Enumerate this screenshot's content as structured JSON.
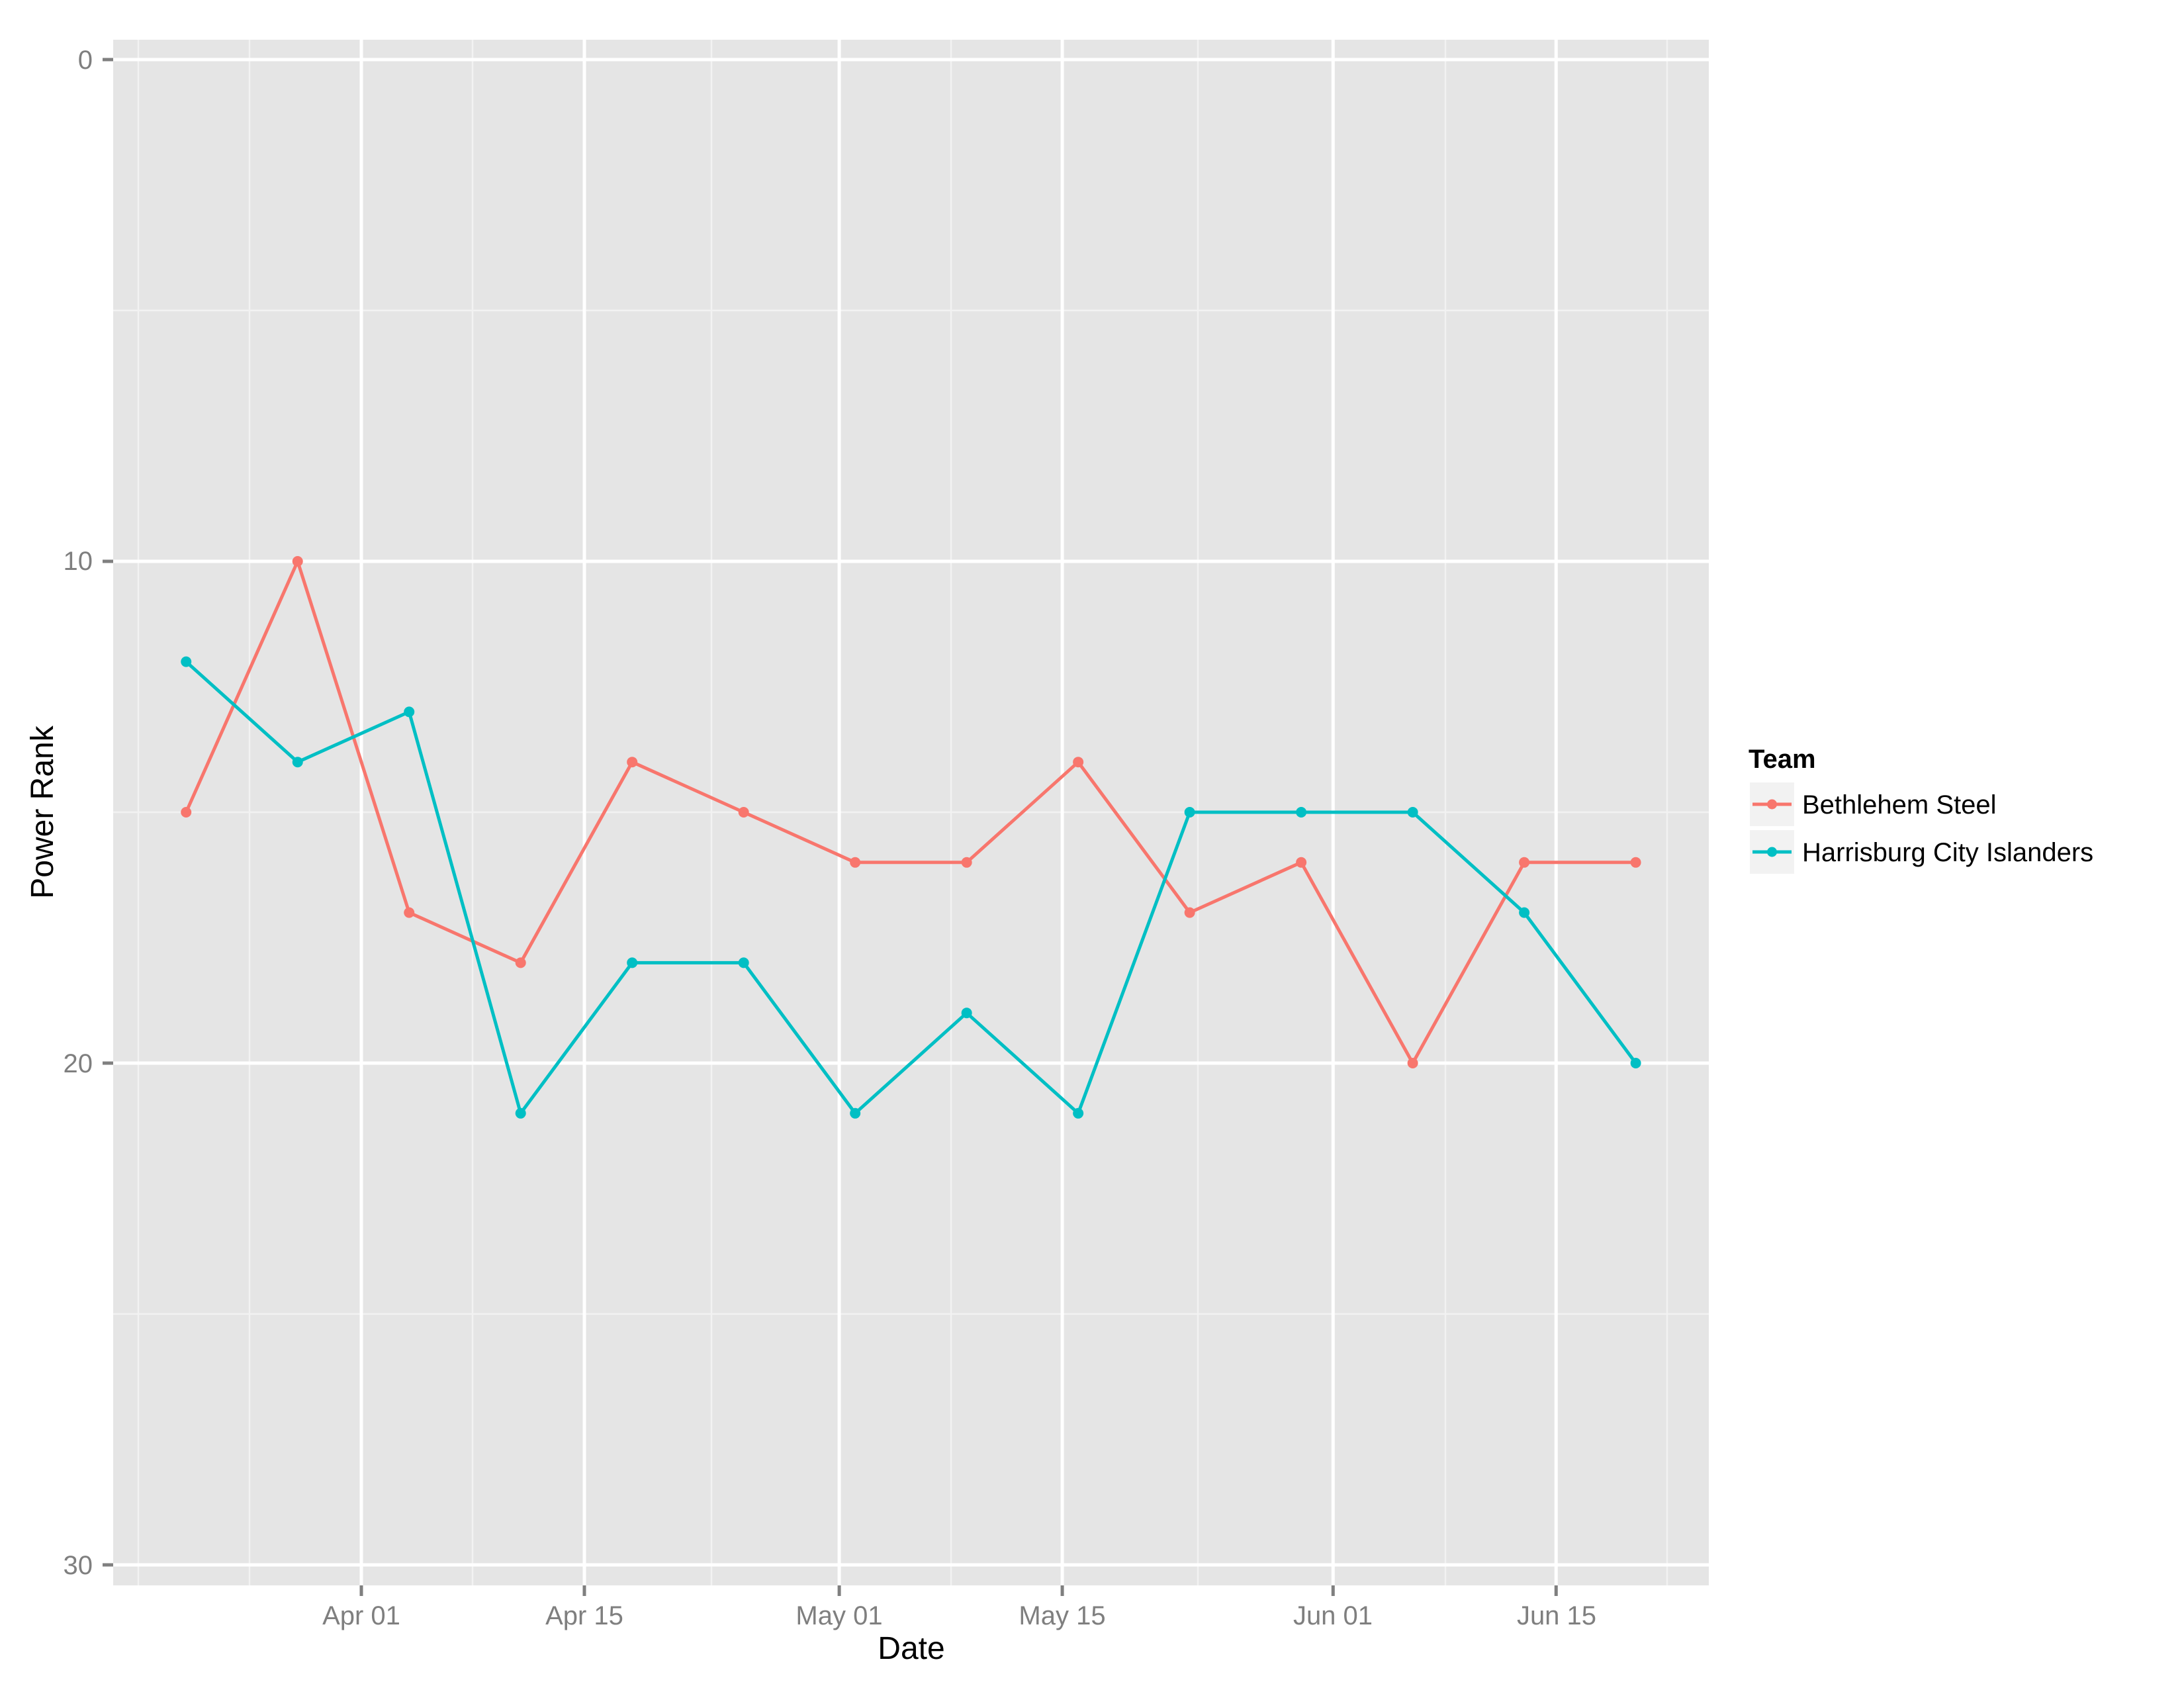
{
  "chart_data": {
    "type": "line",
    "title": "",
    "xlabel": "Date",
    "ylabel": "Power Rank",
    "x": [
      "Mar 21",
      "Mar 28",
      "Apr 04",
      "Apr 11",
      "Apr 18",
      "Apr 25",
      "May 02",
      "May 09",
      "May 16",
      "May 23",
      "May 30",
      "Jun 06",
      "Jun 13",
      "Jun 20"
    ],
    "x_day_offset_from_apr01": [
      -11,
      -4,
      3,
      10,
      17,
      24,
      31,
      38,
      45,
      52,
      59,
      66,
      73,
      80
    ],
    "series": [
      {
        "name": "Bethlehem Steel",
        "color": "#F8766D",
        "values": [
          15,
          10,
          17,
          18,
          14,
          15,
          16,
          16,
          14,
          17,
          16,
          20,
          16,
          16
        ]
      },
      {
        "name": "Harrisburg City Islanders",
        "color": "#00BFC4",
        "values": [
          12,
          14,
          13,
          21,
          18,
          18,
          21,
          19,
          21,
          15,
          15,
          15,
          17,
          20
        ]
      }
    ],
    "x_ticks": [
      {
        "label": "Apr 01",
        "offset": 0
      },
      {
        "label": "Apr 15",
        "offset": 14
      },
      {
        "label": "May 01",
        "offset": 30
      },
      {
        "label": "May 15",
        "offset": 44
      },
      {
        "label": "Jun 01",
        "offset": 61
      },
      {
        "label": "Jun 15",
        "offset": 75
      }
    ],
    "y_ticks": [
      0,
      10,
      20,
      30
    ],
    "ylim": [
      0,
      30
    ],
    "y_reversed": true,
    "grid": true,
    "legend": {
      "title": "Team",
      "position": "right",
      "entries": [
        "Bethlehem Steel",
        "Harrisburg City Islanders"
      ]
    }
  },
  "axes": {
    "x_title": "Date",
    "y_title": "Power Rank",
    "x_tick_labels": [
      "Apr 01",
      "Apr 15",
      "May 01",
      "May 15",
      "Jun 01",
      "Jun 15"
    ],
    "y_tick_labels": [
      "0",
      "10",
      "20",
      "30"
    ]
  },
  "legend": {
    "title": "Team",
    "items": [
      {
        "label": "Bethlehem Steel",
        "color": "#F8766D"
      },
      {
        "label": "Harrisburg City Islanders",
        "color": "#00BFC4"
      }
    ]
  },
  "theme": {
    "panel_bg": "#E5E5E5",
    "grid_major": "#FFFFFF",
    "grid_minor": "#F2F2F2",
    "tick_color": "#7F7F7F"
  }
}
